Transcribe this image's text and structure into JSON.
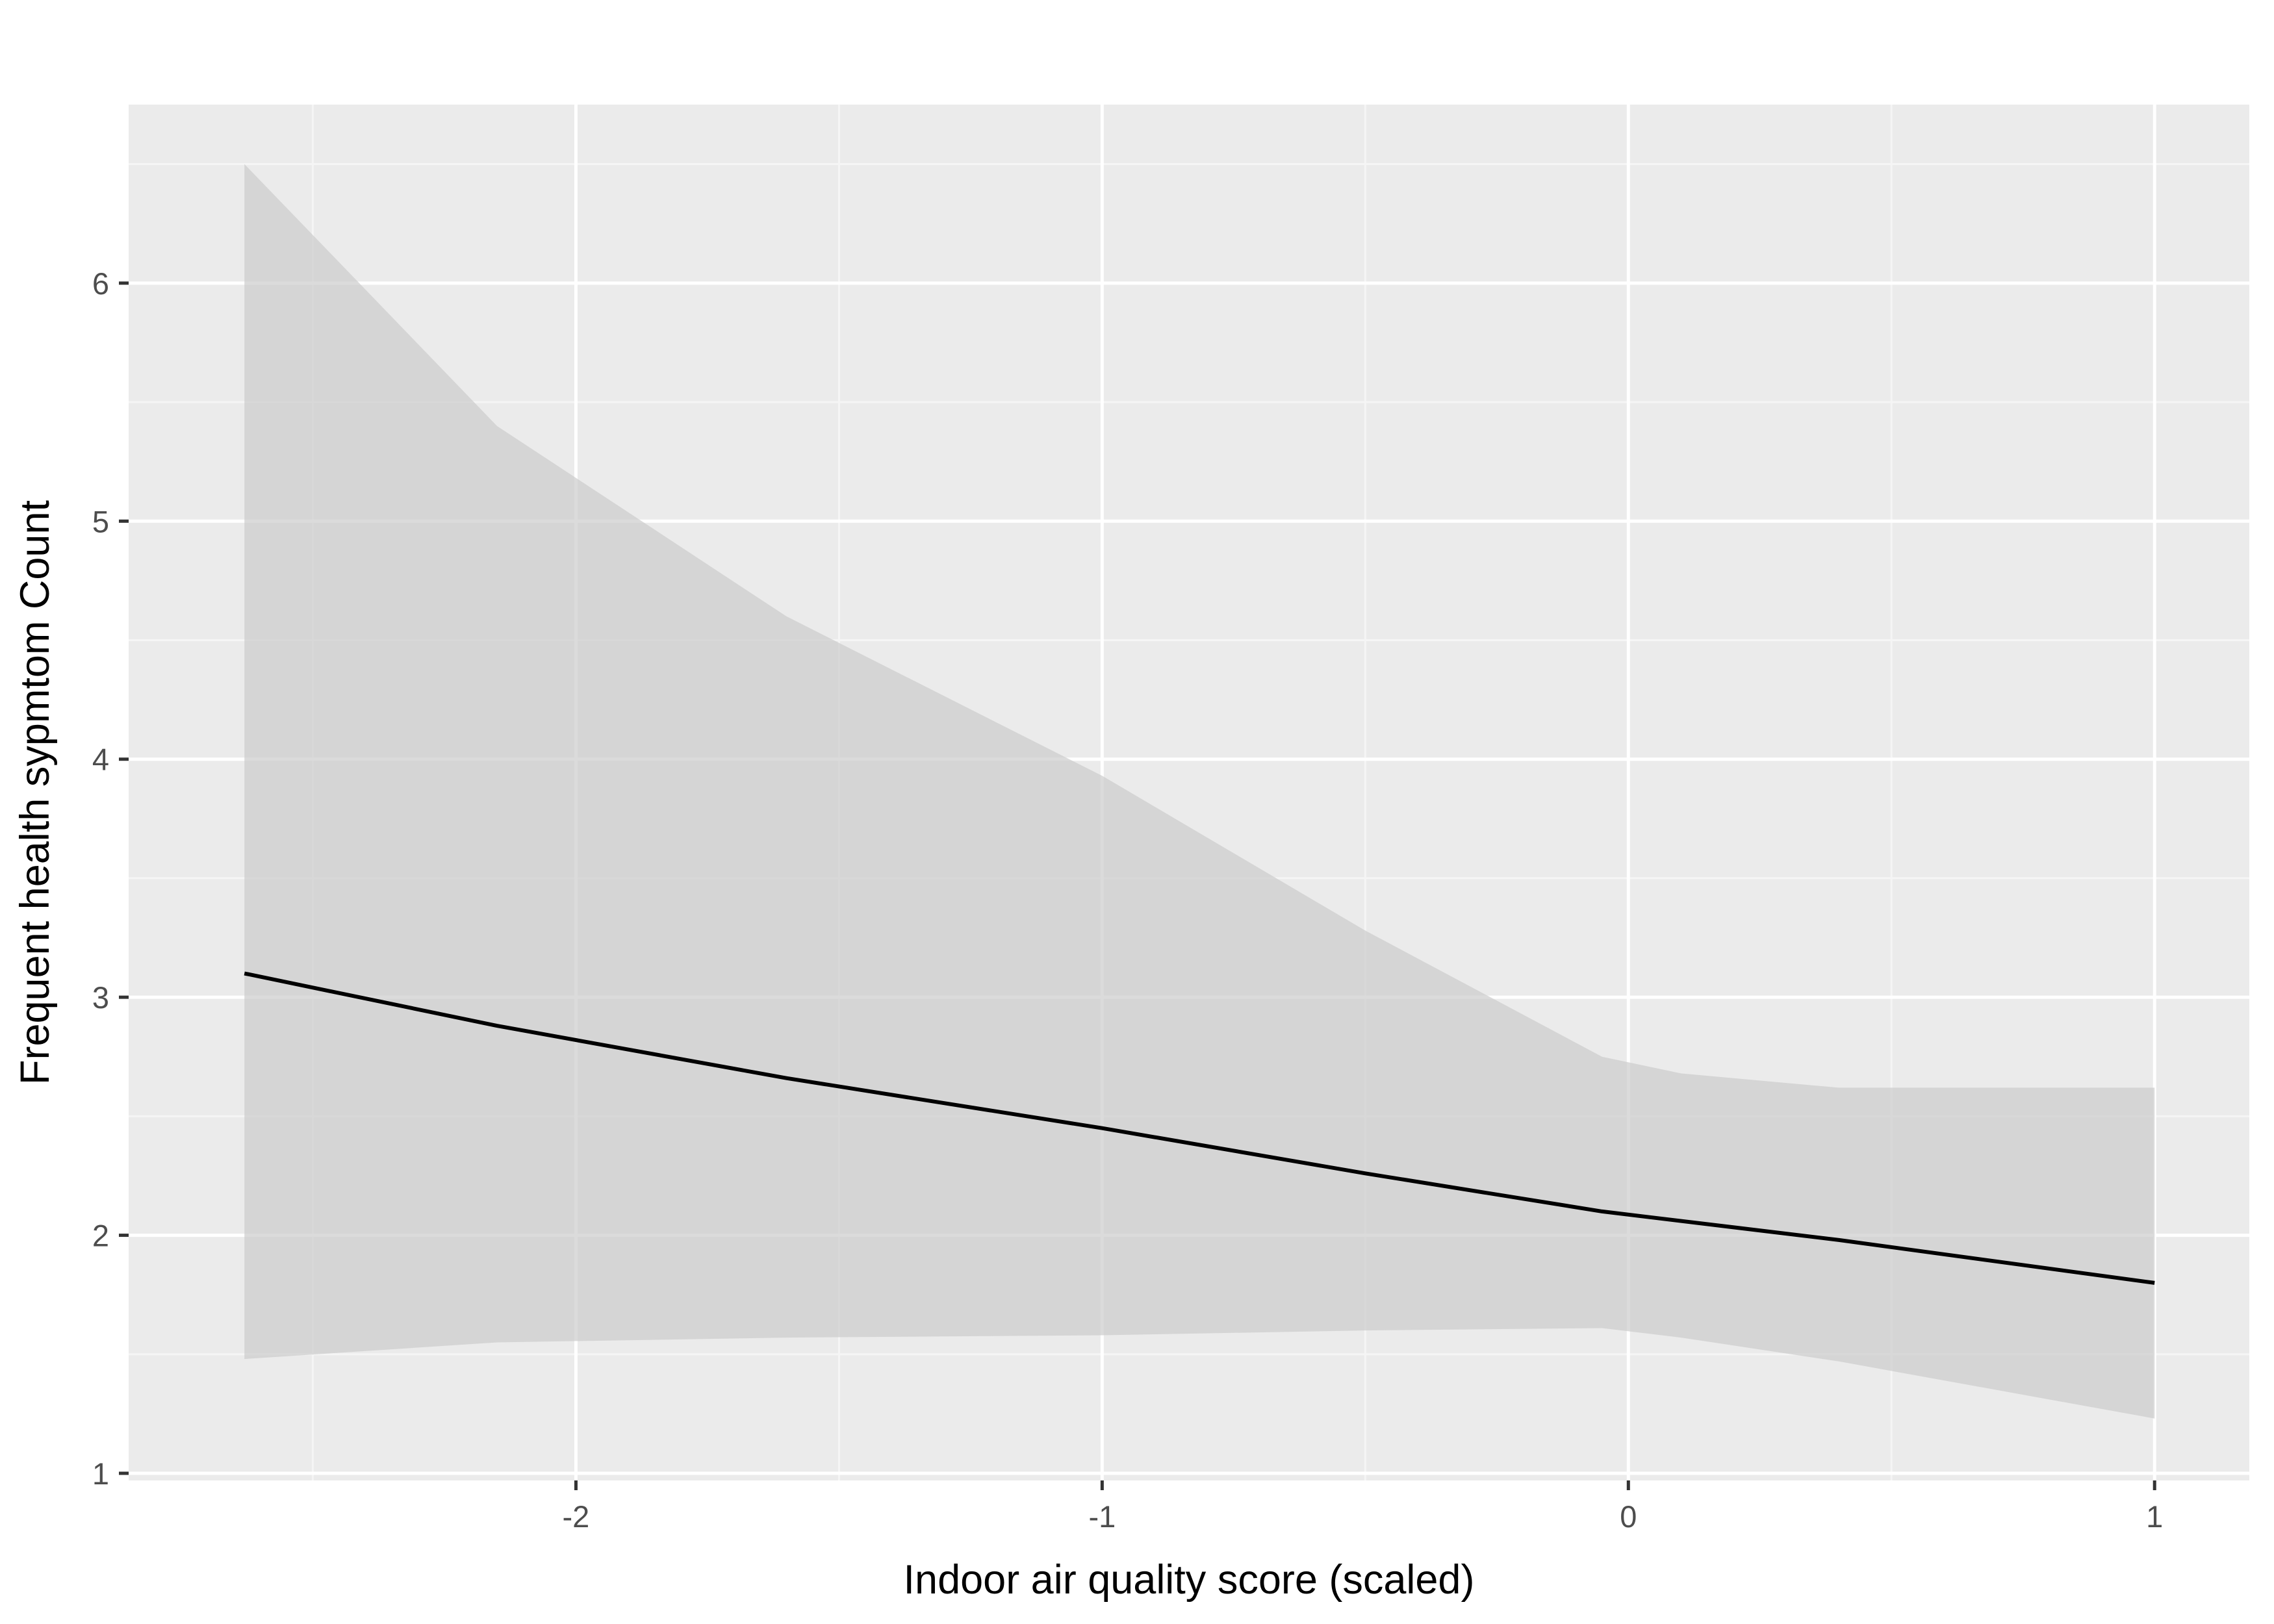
{
  "chart_data": {
    "type": "line",
    "title": "",
    "xlabel": "Indoor air quality score (scaled)",
    "ylabel": "Frequent health sypmtom Count",
    "xlim": [
      -2.85,
      1.18
    ],
    "ylim": [
      0.97,
      6.75
    ],
    "x_ticks": [
      -2,
      -1,
      0,
      1
    ],
    "x_tick_labels": [
      "-2",
      "-1",
      "0",
      "1"
    ],
    "y_ticks": [
      1,
      2,
      3,
      4,
      5,
      6
    ],
    "y_tick_labels": [
      "1",
      "2",
      "3",
      "4",
      "5",
      "6"
    ],
    "grid": true,
    "legend": "none",
    "series": [
      {
        "x": [
          -2.63,
          -2.15,
          -1.6,
          -1.0,
          -0.5,
          -0.05,
          0.4,
          1.0
        ],
        "y": [
          3.1,
          2.88,
          2.66,
          2.45,
          2.26,
          2.1,
          1.98,
          1.8
        ]
      }
    ],
    "confidence_band": {
      "x": [
        -2.63,
        -2.15,
        -1.6,
        -1.0,
        -0.5,
        -0.05,
        0.1,
        0.4,
        1.0
      ],
      "lower": [
        1.48,
        1.55,
        1.57,
        1.58,
        1.6,
        1.61,
        1.57,
        1.47,
        1.23
      ],
      "upper": [
        6.5,
        5.4,
        4.6,
        3.93,
        3.28,
        2.75,
        2.68,
        2.62,
        2.62
      ]
    },
    "colors": {
      "panel_background": "#ebebeb",
      "grid_major": "#ffffff",
      "grid_minor": "#f5f5f5",
      "band_fill": "#cccccc",
      "line": "#000000",
      "tick_text": "#4d4d4d",
      "axis_title": "#000000"
    }
  }
}
